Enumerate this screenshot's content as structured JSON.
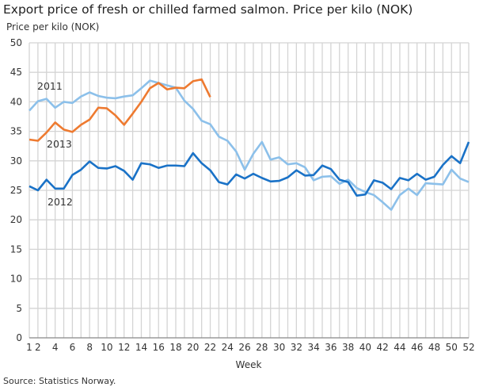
{
  "chart_data": {
    "type": "line",
    "title": "Export price of fresh or chilled farmed salmon. Price per kilo (NOK)",
    "ylabel": "Price per kilo (NOK)",
    "xlabel": "Week",
    "source": "Source: Statistics Norway.",
    "ylim": [
      0,
      50
    ],
    "yticks": [
      0,
      5,
      10,
      15,
      20,
      25,
      30,
      35,
      40,
      45,
      50
    ],
    "xlim": [
      1,
      52
    ],
    "xticks": [
      1,
      2,
      4,
      6,
      8,
      10,
      12,
      14,
      16,
      18,
      20,
      22,
      24,
      26,
      28,
      30,
      32,
      34,
      36,
      38,
      40,
      42,
      44,
      46,
      48,
      50,
      52
    ],
    "grid": true,
    "series": [
      {
        "name": "2011",
        "color": "#8cc0ea",
        "values": [
          38.5,
          40.1,
          40.5,
          39,
          40,
          39.8,
          40.9,
          41.6,
          41,
          40.7,
          40.6,
          40.9,
          41.1,
          42.3,
          43.6,
          43.2,
          42.8,
          42.4,
          40.2,
          38.8,
          36.8,
          36.2,
          34.1,
          33.4,
          31.6,
          28.5,
          31.2,
          33.2,
          30.2,
          30.6,
          29.4,
          29.6,
          28.9,
          26.7,
          27.3,
          27.4,
          26.1,
          26.8,
          25.4,
          24.7,
          24.2,
          23,
          21.7,
          24.2,
          25.3,
          24.2,
          26.2,
          26.1,
          26,
          28.5,
          27,
          26.4
        ]
      },
      {
        "name": "2012",
        "color": "#1a72c7",
        "values": [
          25.7,
          25,
          26.8,
          25.3,
          25.3,
          27.6,
          28.5,
          29.9,
          28.8,
          28.7,
          29.1,
          28.3,
          26.8,
          29.6,
          29.4,
          28.8,
          29.2,
          29.2,
          29.1,
          31.3,
          29.6,
          28.4,
          26.4,
          26,
          27.7,
          27,
          27.8,
          27.1,
          26.5,
          26.6,
          27.2,
          28.4,
          27.5,
          27.6,
          29.2,
          28.6,
          26.8,
          26.4,
          24.1,
          24.3,
          26.7,
          26.3,
          25.2,
          27.1,
          26.7,
          27.8,
          26.8,
          27.3,
          29.3,
          30.8,
          29.6,
          33.2
        ]
      },
      {
        "name": "2013",
        "color": "#ee7a30",
        "values": [
          33.6,
          33.4,
          34.8,
          36.5,
          35.3,
          34.9,
          36.1,
          37,
          39,
          38.9,
          37.7,
          36.1,
          38,
          40,
          42.3,
          43.2,
          42.1,
          42.4,
          42.3,
          43.5,
          43.8,
          40.8
        ]
      }
    ]
  }
}
